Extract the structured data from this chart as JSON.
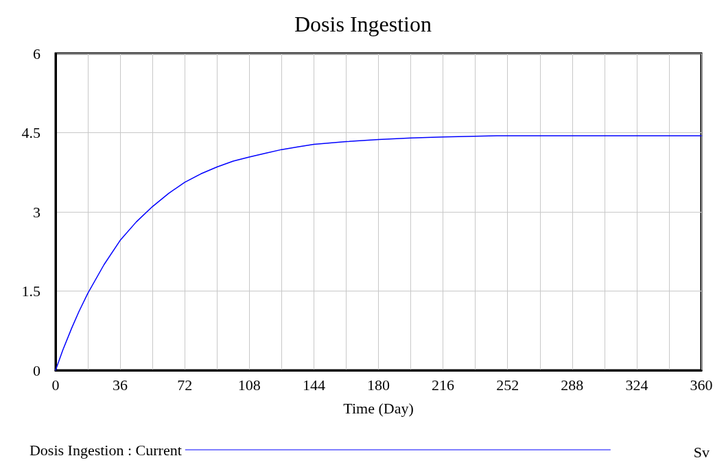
{
  "chart_data": {
    "type": "line",
    "title": "Dosis Ingestion",
    "xlabel": "Time (Day)",
    "x": [
      0,
      4,
      9,
      13,
      18,
      27,
      36,
      45,
      54,
      63,
      72,
      81,
      90,
      99,
      108,
      117,
      126,
      135,
      144,
      162,
      180,
      198,
      216,
      246,
      360
    ],
    "series": [
      {
        "name": "Dosis Ingestion : Current",
        "color": "#0000ff",
        "values": [
          0,
          0.38,
          0.8,
          1.11,
          1.46,
          2.0,
          2.46,
          2.81,
          3.1,
          3.35,
          3.56,
          3.72,
          3.85,
          3.96,
          4.04,
          4.11,
          4.18,
          4.23,
          4.28,
          4.33,
          4.37,
          4.4,
          4.42,
          4.44,
          4.44
        ]
      }
    ],
    "xlim": [
      0,
      360
    ],
    "xticks": [
      0,
      {
        "value": 18,
        "label": null
      },
      36,
      {
        "value": 54,
        "label": null
      },
      72,
      {
        "value": 90,
        "label": null
      },
      108,
      {
        "value": 126,
        "label": null
      },
      144,
      {
        "value": 162,
        "label": null
      },
      180,
      {
        "value": 198,
        "label": null
      },
      216,
      {
        "value": 234,
        "label": null
      },
      252,
      {
        "value": 270,
        "label": null
      },
      288,
      {
        "value": 306,
        "label": null
      },
      324,
      {
        "value": 342,
        "label": null
      },
      360
    ],
    "ylim": [
      0,
      6
    ],
    "yticks": [
      0,
      1.5,
      3,
      4.5,
      6
    ],
    "grid": true,
    "legend": "bottom",
    "marker": "none",
    "line_style": "solid",
    "annotations": [
      "Sv"
    ]
  }
}
